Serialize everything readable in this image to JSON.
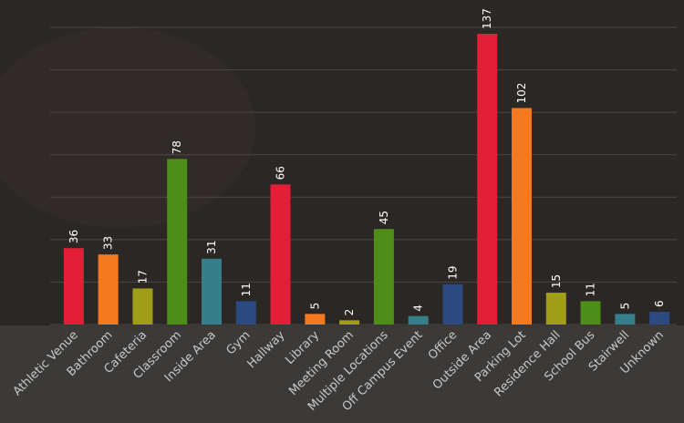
{
  "chart_data": {
    "type": "bar",
    "categories": [
      "Athletic Venue",
      "Bathroom",
      "Cafeteria",
      "Classroom",
      "Inside Area",
      "Gym",
      "Hallway",
      "Library",
      "Meeting Room",
      "Multiple Locations",
      "Off Campus Event",
      "Office",
      "Outside Area",
      "Parking Lot",
      "Residence Hall",
      "School Bus",
      "Stairwell",
      "Unknown"
    ],
    "values": [
      36,
      33,
      17,
      78,
      31,
      11,
      66,
      5,
      2,
      45,
      4,
      19,
      137,
      102,
      15,
      11,
      5,
      6
    ],
    "colors": [
      "#e21f37",
      "#f57a1f",
      "#a09d16",
      "#4f8d19",
      "#377e8b",
      "#2a4a80",
      "#e21f37",
      "#f57a1f",
      "#a09d16",
      "#4f8d19",
      "#377e8b",
      "#2a4a80",
      "#e21f37",
      "#f57a1f",
      "#a09d16",
      "#4f8d19",
      "#377e8b",
      "#2a4a80"
    ],
    "ylim": [
      0,
      140
    ],
    "yticks": [
      0,
      20,
      40,
      60,
      80,
      100,
      120,
      140
    ],
    "grid": true
  }
}
